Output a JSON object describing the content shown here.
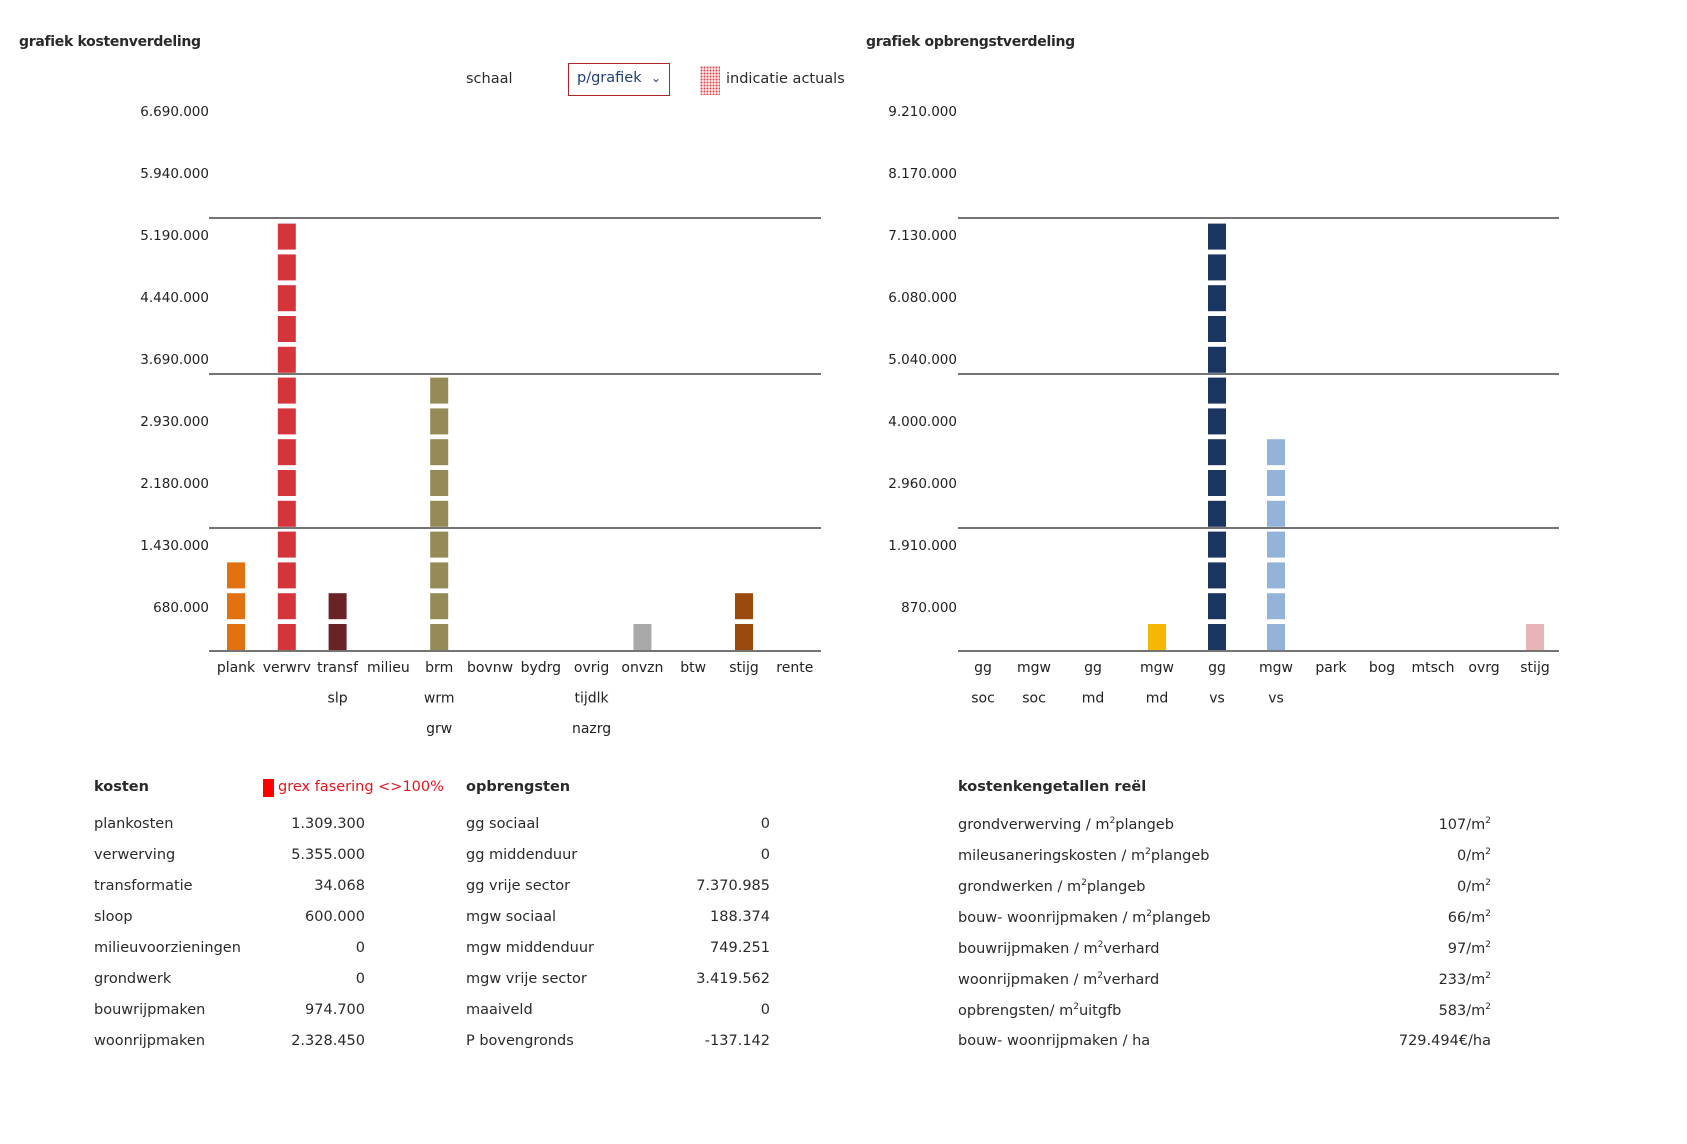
{
  "left": {
    "title": "grafiek kostenverdeling",
    "scale_label": "schaal",
    "scale_value": "p/grafiek",
    "legend_label": "indicatie actuals"
  },
  "right": {
    "title": "grafiek opbrengstverdeling"
  },
  "chart_data": [
    {
      "type": "bar",
      "title": "grafiek kostenverdeling",
      "ticks": [
        "6.690.000",
        "5.940.000",
        "5.190.000",
        "4.440.000",
        "3.690.000",
        "2.930.000",
        "2.180.000",
        "1.430.000",
        "680.000"
      ],
      "categories": [
        {
          "lines": [
            "plank"
          ],
          "value": 1309300,
          "blocks": 3,
          "color": "#e07010"
        },
        {
          "lines": [
            "verwrv"
          ],
          "value": 5355000,
          "blocks": 14,
          "color": "#d6343b"
        },
        {
          "lines": [
            "transf",
            "slp"
          ],
          "value": 634068,
          "blocks": 2,
          "color": "#6b2226"
        },
        {
          "lines": [
            "milieu"
          ],
          "value": 0,
          "blocks": 0,
          "color": "#999999"
        },
        {
          "lines": [
            "brm",
            "wrm",
            "grw"
          ],
          "value": 3303150,
          "blocks": 9,
          "color": "#958a56"
        },
        {
          "lines": [
            "bovnw"
          ],
          "value": 0,
          "blocks": 0,
          "color": "#999999"
        },
        {
          "lines": [
            "bydrg"
          ],
          "value": 0,
          "blocks": 0,
          "color": "#999999"
        },
        {
          "lines": [
            "ovrig",
            "tijdlk",
            "nazrg"
          ],
          "value": 0,
          "blocks": 0,
          "color": "#999999"
        },
        {
          "lines": [
            "onvzn"
          ],
          "value": 300000,
          "blocks": 1,
          "color": "#a9a9a9"
        },
        {
          "lines": [
            "btw"
          ],
          "value": 0,
          "blocks": 0,
          "color": "#999999"
        },
        {
          "lines": [
            "stijg"
          ],
          "value": 680000,
          "blocks": 2,
          "color": "#9a4a0c"
        },
        {
          "lines": [
            "rente"
          ],
          "value": 0,
          "blocks": 0,
          "color": "#999999"
        }
      ]
    },
    {
      "type": "bar",
      "title": "grafiek opbrengstverdeling",
      "ticks": [
        "9.210.000",
        "8.170.000",
        "7.130.000",
        "6.080.000",
        "5.040.000",
        "4.000.000",
        "2.960.000",
        "1.910.000",
        "870.000"
      ],
      "categories": [
        {
          "lines": [
            "gg",
            "soc"
          ],
          "value": 0,
          "blocks": 0,
          "color": "#999999"
        },
        {
          "lines": [
            "mgw",
            "soc"
          ],
          "value": 188374,
          "blocks": 0,
          "color": "#999999"
        },
        {
          "lines": [
            "gg",
            "md"
          ],
          "value": 0,
          "blocks": 0,
          "color": "#999999"
        },
        {
          "lines": [
            "mgw",
            "md"
          ],
          "value": 749251,
          "blocks": 1,
          "color": "#f5b800"
        },
        {
          "lines": [
            "gg",
            "vs"
          ],
          "value": 7370985,
          "blocks": 14,
          "color": "#1a3560"
        },
        {
          "lines": [
            "mgw",
            "vs"
          ],
          "value": 3419562,
          "blocks": 7,
          "color": "#93b3d8"
        },
        {
          "lines": [
            "park"
          ],
          "value": 0,
          "blocks": 0,
          "color": "#999999"
        },
        {
          "lines": [
            "bog"
          ],
          "value": 0,
          "blocks": 0,
          "color": "#999999"
        },
        {
          "lines": [
            "mtsch"
          ],
          "value": 0,
          "blocks": 0,
          "color": "#999999"
        },
        {
          "lines": [
            "ovrg"
          ],
          "value": 0,
          "blocks": 0,
          "color": "#999999"
        },
        {
          "lines": [
            "stijg"
          ],
          "value": 137142,
          "blocks": 1,
          "color": "#e7b5b8"
        }
      ]
    }
  ],
  "kosten": {
    "header": "kosten",
    "flag": "grex fasering <>100%",
    "rows": [
      {
        "label": "plankosten",
        "value": "1.309.300"
      },
      {
        "label": "verwerving",
        "value": "5.355.000"
      },
      {
        "label": "transformatie",
        "value": "34.068"
      },
      {
        "label": "sloop",
        "value": "600.000"
      },
      {
        "label": "milieuvoorzieningen",
        "value": "0"
      },
      {
        "label": "grondwerk",
        "value": "0"
      },
      {
        "label": "bouwrijpmaken",
        "value": "974.700"
      },
      {
        "label": "woonrijpmaken",
        "value": "2.328.450"
      }
    ]
  },
  "opbrengsten": {
    "header": "opbrengsten",
    "rows": [
      {
        "label": "gg sociaal",
        "value": "0"
      },
      {
        "label": "gg middenduur",
        "value": "0"
      },
      {
        "label": "gg vrije sector",
        "value": "7.370.985"
      },
      {
        "label": "mgw sociaal",
        "value": "188.374"
      },
      {
        "label": "mgw middenduur",
        "value": "749.251"
      },
      {
        "label": "mgw vrije sector",
        "value": "3.419.562"
      },
      {
        "label": "maaiveld",
        "value": "0"
      },
      {
        "label": "P bovengronds",
        "value": "-137.142"
      }
    ]
  },
  "kengetallen": {
    "header": "kostenkengetallen reël",
    "rows": [
      {
        "label": "grondverwerving / m",
        "sup": "2",
        "label2": "plangeb",
        "value": "107/m",
        "vsup": "2"
      },
      {
        "label": "mileusaneringskosten / m",
        "sup": "2",
        "label2": "plangeb",
        "value": "0/m",
        "vsup": "2"
      },
      {
        "label": "grondwerken / m",
        "sup": "2",
        "label2": "plangeb",
        "value": "0/m",
        "vsup": "2"
      },
      {
        "label": "bouw- woonrijpmaken / m",
        "sup": "2",
        "label2": "plangeb",
        "value": "66/m",
        "vsup": "2"
      },
      {
        "label": "bouwrijpmaken / m",
        "sup": "2",
        "label2": "verhard",
        "value": "97/m",
        "vsup": "2"
      },
      {
        "label": "woonrijpmaken / m",
        "sup": "2",
        "label2": "verhard",
        "value": "233/m",
        "vsup": "2"
      },
      {
        "label": "opbrengsten/ m",
        "sup": "2",
        "label2": "uitgfb",
        "value": "583/m",
        "vsup": "2"
      },
      {
        "label": "bouw- woonrijpmaken / ha",
        "sup": "",
        "label2": "",
        "value": "729.494€/ha",
        "vsup": ""
      }
    ]
  }
}
